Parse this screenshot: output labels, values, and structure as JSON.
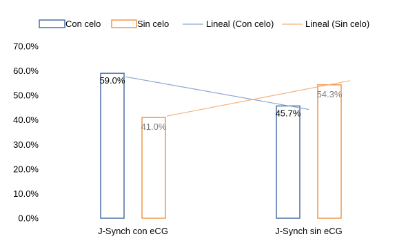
{
  "chart_data": {
    "type": "bar",
    "categories": [
      "J-Synch con eCG",
      "J-Synch sin eCG"
    ],
    "series": [
      {
        "name": "Con celo",
        "values": [
          59.0,
          45.7
        ],
        "color": "#4a6fa5",
        "data_labels": [
          "59.0%",
          "45.7%"
        ]
      },
      {
        "name": "Sin celo",
        "values": [
          41.0,
          54.3
        ],
        "color": "#f0964a",
        "data_labels": [
          "41.0%",
          "54.3%"
        ]
      }
    ],
    "trendlines": [
      {
        "name": "Lineal (Con celo)",
        "series": "Con celo",
        "color": "#8ea6cf"
      },
      {
        "name": "Lineal (Sin celo)",
        "series": "Sin celo",
        "color": "#f5b27a"
      }
    ],
    "ylim": [
      0,
      70
    ],
    "yticks": [
      0,
      10,
      20,
      30,
      40,
      50,
      60,
      70
    ],
    "ytick_labels": [
      "0.0%",
      "10.0%",
      "20.0%",
      "30.0%",
      "40.0%",
      "50.0%",
      "60.0%",
      "70.0%"
    ],
    "legend_position": "top",
    "grid": false
  }
}
